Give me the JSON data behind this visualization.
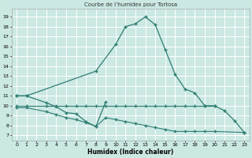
{
  "title": "Courbe de l’humidex pour Tortosa",
  "xlabel": "Humidex (Indice chaleur)",
  "bg_color": "#cbe8e3",
  "grid_color": "#ffffff",
  "line_color": "#2e7d72",
  "ylim": [
    6.5,
    19.8
  ],
  "xlim": [
    -0.5,
    23.5
  ],
  "yticks": [
    7,
    8,
    9,
    10,
    11,
    12,
    13,
    14,
    15,
    16,
    17,
    18,
    19
  ],
  "xticks": [
    0,
    1,
    2,
    3,
    4,
    5,
    6,
    7,
    8,
    9,
    10,
    11,
    12,
    13,
    14,
    15,
    16,
    17,
    18,
    19,
    20,
    21,
    22,
    23
  ],
  "curve_main_x": [
    0,
    1,
    8,
    10,
    11,
    12,
    13,
    14,
    15,
    16,
    17,
    18,
    19,
    20,
    21,
    22,
    23
  ],
  "curve_main_y": [
    11,
    11,
    13.5,
    16.2,
    18.0,
    18.3,
    19.0,
    18.2,
    15.7,
    13.2,
    11.7,
    11.3,
    10.0,
    10.0,
    9.5,
    8.5,
    7.3
  ],
  "curve_low_x": [
    0,
    1,
    3,
    4,
    5,
    6,
    7,
    8,
    9
  ],
  "curve_low_y": [
    11.0,
    11.0,
    10.3,
    9.9,
    9.3,
    9.2,
    8.4,
    7.9,
    10.4
  ],
  "curve_flat_x": [
    0,
    1,
    3,
    4,
    5,
    6,
    7,
    8,
    9,
    10,
    11,
    12,
    13,
    14,
    15,
    16,
    17,
    18,
    19,
    20
  ],
  "curve_flat_y": [
    10.0,
    10.0,
    10.0,
    10.0,
    10.0,
    10.0,
    10.0,
    10.0,
    10.0,
    10.0,
    10.0,
    10.0,
    10.0,
    10.0,
    10.0,
    10.0,
    10.0,
    10.0,
    10.0,
    10.0
  ],
  "curve_decline_x": [
    0,
    1,
    3,
    4,
    5,
    6,
    7,
    8,
    9,
    10,
    11,
    12,
    13,
    14,
    15,
    16,
    17,
    18,
    19,
    20,
    23
  ],
  "curve_decline_y": [
    9.8,
    9.8,
    9.4,
    9.1,
    8.8,
    8.6,
    8.3,
    7.9,
    8.8,
    8.6,
    8.4,
    8.2,
    8.0,
    7.8,
    7.6,
    7.4,
    7.4,
    7.4,
    7.4,
    7.4,
    7.3
  ]
}
